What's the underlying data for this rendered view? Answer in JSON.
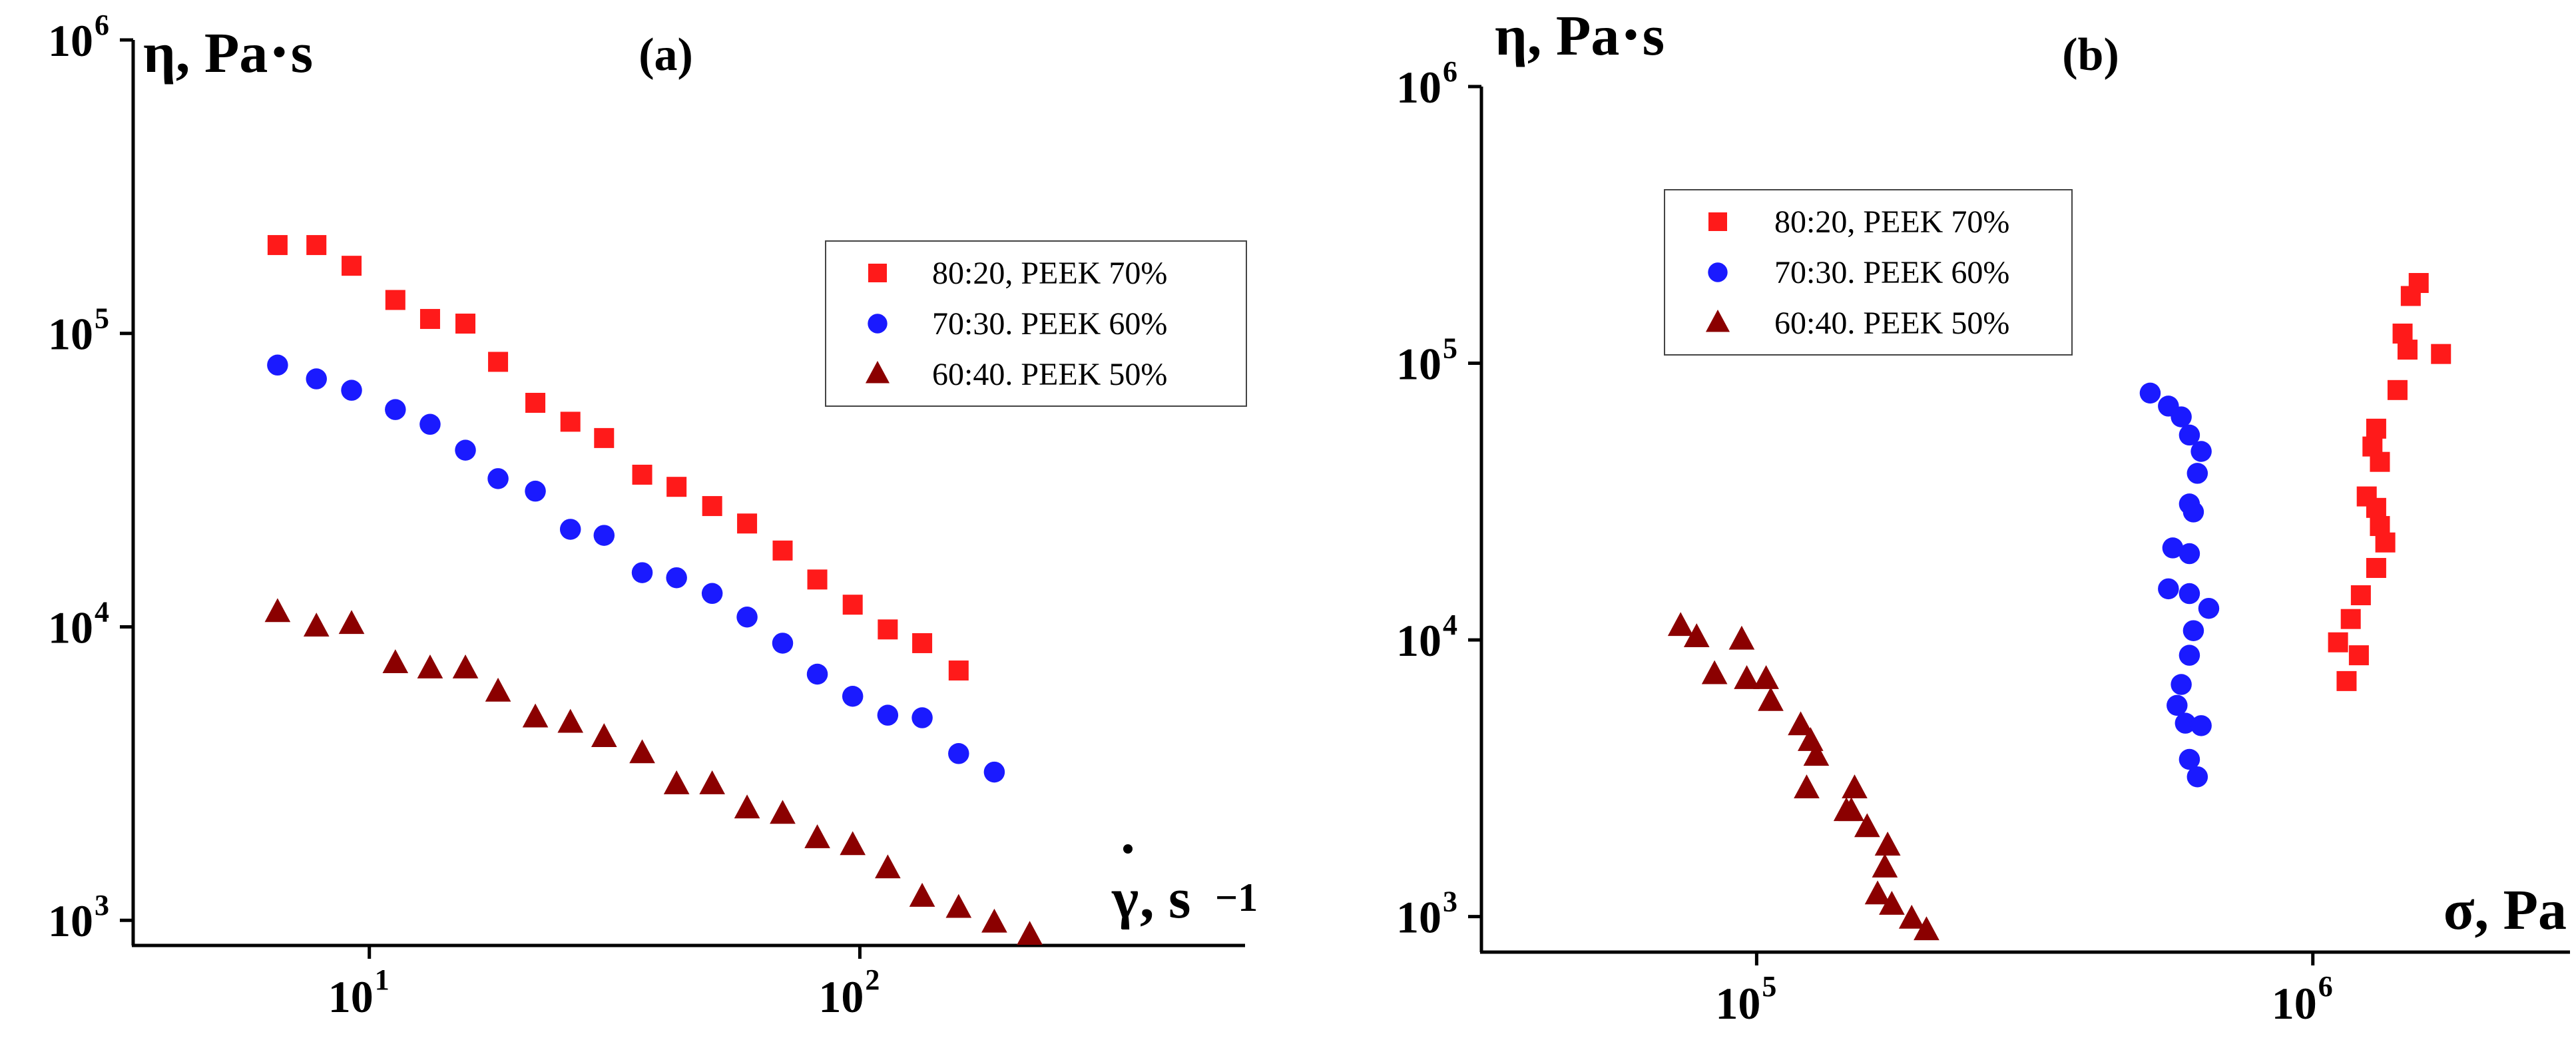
{
  "chart_data": [
    {
      "type": "scatter",
      "panel_label": "(a)",
      "ylabel": "η, Pa⋅s",
      "xlabel_symbol": "γ",
      "xlabel_unit": ", s",
      "xlabel_exp": "−1",
      "xscale": "log",
      "yscale": "log",
      "xlim": [
        3.3,
        610
      ],
      "ylim": [
        600,
        1000000
      ],
      "x_ticks": [
        {
          "base": "10",
          "exp": "1",
          "value": 10
        },
        {
          "base": "10",
          "exp": "2",
          "value": 100
        }
      ],
      "y_ticks": [
        {
          "base": "10",
          "exp": "3",
          "value": 1000
        },
        {
          "base": "10",
          "exp": "4",
          "value": 10000
        },
        {
          "base": "10",
          "exp": "5",
          "value": 100000
        },
        {
          "base": "10",
          "exp": "6",
          "value": 1000000
        }
      ],
      "legend_position": "top-right",
      "series": [
        {
          "name": "80:20, PEEK 70%",
          "marker": "square",
          "color": "#ff1a1a",
          "x": [
            6.5,
            7.8,
            9.2,
            11.3,
            13.3,
            15.7,
            18.3,
            21.8,
            25.7,
            30.1,
            36.0,
            42.3,
            50.0,
            58.9,
            69.6,
            81.9,
            96.7,
            114,
            134,
            159
          ],
          "y": [
            200000,
            200000,
            170000,
            130000,
            112000,
            108000,
            80000,
            58000,
            50000,
            44000,
            33000,
            30000,
            25800,
            22500,
            18200,
            14500,
            11900,
            9800,
            8800,
            7100
          ]
        },
        {
          "name": "70:30. PEEK 60%",
          "marker": "circle",
          "color": "#1a1aff",
          "x": [
            6.5,
            7.8,
            9.2,
            11.3,
            13.3,
            15.7,
            18.3,
            21.8,
            25.7,
            30.1,
            36.0,
            42.3,
            50.0,
            58.9,
            69.6,
            81.9,
            96.7,
            114,
            134,
            159,
            188
          ],
          "y": [
            78000,
            70000,
            64000,
            55000,
            49000,
            40000,
            32000,
            29000,
            21500,
            20500,
            15300,
            14700,
            13000,
            10800,
            8800,
            6900,
            5800,
            5000,
            4900,
            3700,
            3200
          ]
        },
        {
          "name": "60:40. PEEK 50%",
          "marker": "triangle",
          "color": "#8b0000",
          "x": [
            6.5,
            7.8,
            9.2,
            11.3,
            13.3,
            15.7,
            18.3,
            21.8,
            25.7,
            30.1,
            36.0,
            42.3,
            50.0,
            58.9,
            69.6,
            81.9,
            96.7,
            114,
            134,
            159,
            188,
            222
          ],
          "y": [
            11200,
            10000,
            10200,
            7500,
            7200,
            7200,
            6000,
            4900,
            4700,
            4200,
            3700,
            2900,
            2900,
            2400,
            2300,
            1900,
            1800,
            1500,
            1200,
            1100,
            980,
            890
          ]
        }
      ]
    },
    {
      "type": "scatter",
      "panel_label": "(b)",
      "ylabel": "η, Pa⋅s",
      "xlabel": "σ, Pa",
      "xscale": "log",
      "yscale": "log",
      "xlim": [
        32000,
        2900000
      ],
      "ylim": [
        630,
        1000000
      ],
      "x_ticks": [
        {
          "base": "10",
          "exp": "5",
          "value": 100000
        },
        {
          "base": "10",
          "exp": "6",
          "value": 1000000
        }
      ],
      "y_ticks": [
        {
          "base": "10",
          "exp": "3",
          "value": 1000
        },
        {
          "base": "10",
          "exp": "4",
          "value": 10000
        },
        {
          "base": "10",
          "exp": "5",
          "value": 100000
        },
        {
          "base": "10",
          "exp": "6",
          "value": 1000000
        }
      ],
      "legend_position": "top-left",
      "series": [
        {
          "name": "80:20, PEEK 70%",
          "marker": "square",
          "color": "#ff1a1a",
          "x": [
            1550000,
            1500000,
            1700000,
            1450000,
            1480000,
            1420000,
            1300000,
            1280000,
            1320000,
            1250000,
            1300000,
            1320000,
            1350000,
            1300000,
            1220000,
            1170000,
            1110000,
            1210000,
            1150000
          ],
          "y": [
            195000,
            175000,
            108000,
            128000,
            112000,
            80000,
            58000,
            50000,
            44000,
            33000,
            30000,
            25800,
            22500,
            18200,
            14500,
            11900,
            9800,
            8800,
            7100
          ]
        },
        {
          "name": "70:30. PEEK 60%",
          "marker": "circle",
          "color": "#1a1aff",
          "x": [
            510000,
            550000,
            580000,
            600000,
            630000,
            620000,
            600000,
            610000,
            560000,
            600000,
            550000,
            600000,
            650000,
            610000,
            600000,
            580000,
            570000,
            590000,
            630000,
            600000,
            620000
          ],
          "y": [
            78000,
            70000,
            64000,
            55000,
            48000,
            40000,
            31000,
            29000,
            21500,
            20500,
            15300,
            14700,
            13000,
            10800,
            8800,
            6900,
            5800,
            5000,
            4900,
            3700,
            3200
          ]
        },
        {
          "name": "60:40. PEEK 50%",
          "marker": "triangle",
          "color": "#8b0000",
          "x": [
            73000,
            78000,
            84000,
            94000,
            96000,
            104000,
            106000,
            120000,
            125000,
            128000,
            150000,
            148000,
            123000,
            145000,
            158000,
            172000,
            170000,
            172000,
            165000,
            175000,
            190000,
            202000
          ],
          "y": [
            11200,
            10200,
            7500,
            10000,
            7200,
            7200,
            6000,
            4900,
            4300,
            3800,
            2900,
            2400,
            2900,
            2400,
            2100,
            1800,
            1500,
            1800,
            1200,
            1100,
            980,
            890
          ]
        }
      ]
    }
  ]
}
